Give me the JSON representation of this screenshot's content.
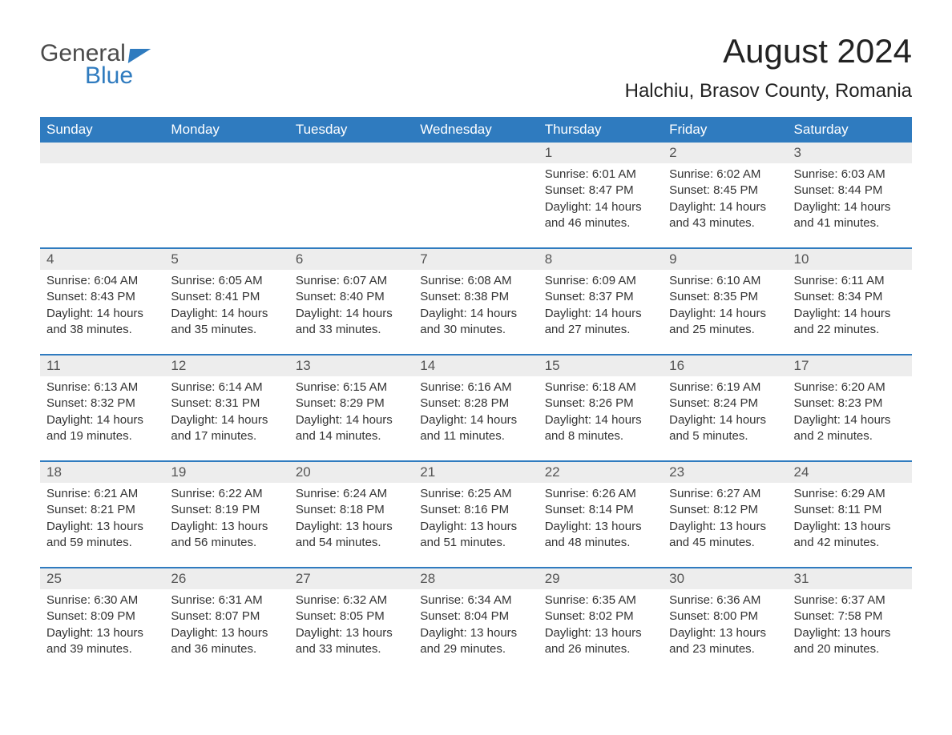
{
  "logo": {
    "text1": "General",
    "text2": "Blue"
  },
  "title": "August 2024",
  "location": "Halchiu, Brasov County, Romania",
  "colors": {
    "header_bg": "#2f7bbf",
    "header_text": "#ffffff",
    "dayrow_bg": "#ededed",
    "body_text": "#333333",
    "page_bg": "#ffffff"
  },
  "weekdays": [
    "Sunday",
    "Monday",
    "Tuesday",
    "Wednesday",
    "Thursday",
    "Friday",
    "Saturday"
  ],
  "weeks": [
    [
      null,
      null,
      null,
      null,
      {
        "n": "1",
        "sr": "6:01 AM",
        "ss": "8:47 PM",
        "dh": "14",
        "dm": "46"
      },
      {
        "n": "2",
        "sr": "6:02 AM",
        "ss": "8:45 PM",
        "dh": "14",
        "dm": "43"
      },
      {
        "n": "3",
        "sr": "6:03 AM",
        "ss": "8:44 PM",
        "dh": "14",
        "dm": "41"
      }
    ],
    [
      {
        "n": "4",
        "sr": "6:04 AM",
        "ss": "8:43 PM",
        "dh": "14",
        "dm": "38"
      },
      {
        "n": "5",
        "sr": "6:05 AM",
        "ss": "8:41 PM",
        "dh": "14",
        "dm": "35"
      },
      {
        "n": "6",
        "sr": "6:07 AM",
        "ss": "8:40 PM",
        "dh": "14",
        "dm": "33"
      },
      {
        "n": "7",
        "sr": "6:08 AM",
        "ss": "8:38 PM",
        "dh": "14",
        "dm": "30"
      },
      {
        "n": "8",
        "sr": "6:09 AM",
        "ss": "8:37 PM",
        "dh": "14",
        "dm": "27"
      },
      {
        "n": "9",
        "sr": "6:10 AM",
        "ss": "8:35 PM",
        "dh": "14",
        "dm": "25"
      },
      {
        "n": "10",
        "sr": "6:11 AM",
        "ss": "8:34 PM",
        "dh": "14",
        "dm": "22"
      }
    ],
    [
      {
        "n": "11",
        "sr": "6:13 AM",
        "ss": "8:32 PM",
        "dh": "14",
        "dm": "19"
      },
      {
        "n": "12",
        "sr": "6:14 AM",
        "ss": "8:31 PM",
        "dh": "14",
        "dm": "17"
      },
      {
        "n": "13",
        "sr": "6:15 AM",
        "ss": "8:29 PM",
        "dh": "14",
        "dm": "14"
      },
      {
        "n": "14",
        "sr": "6:16 AM",
        "ss": "8:28 PM",
        "dh": "14",
        "dm": "11"
      },
      {
        "n": "15",
        "sr": "6:18 AM",
        "ss": "8:26 PM",
        "dh": "14",
        "dm": "8"
      },
      {
        "n": "16",
        "sr": "6:19 AM",
        "ss": "8:24 PM",
        "dh": "14",
        "dm": "5"
      },
      {
        "n": "17",
        "sr": "6:20 AM",
        "ss": "8:23 PM",
        "dh": "14",
        "dm": "2"
      }
    ],
    [
      {
        "n": "18",
        "sr": "6:21 AM",
        "ss": "8:21 PM",
        "dh": "13",
        "dm": "59"
      },
      {
        "n": "19",
        "sr": "6:22 AM",
        "ss": "8:19 PM",
        "dh": "13",
        "dm": "56"
      },
      {
        "n": "20",
        "sr": "6:24 AM",
        "ss": "8:18 PM",
        "dh": "13",
        "dm": "54"
      },
      {
        "n": "21",
        "sr": "6:25 AM",
        "ss": "8:16 PM",
        "dh": "13",
        "dm": "51"
      },
      {
        "n": "22",
        "sr": "6:26 AM",
        "ss": "8:14 PM",
        "dh": "13",
        "dm": "48"
      },
      {
        "n": "23",
        "sr": "6:27 AM",
        "ss": "8:12 PM",
        "dh": "13",
        "dm": "45"
      },
      {
        "n": "24",
        "sr": "6:29 AM",
        "ss": "8:11 PM",
        "dh": "13",
        "dm": "42"
      }
    ],
    [
      {
        "n": "25",
        "sr": "6:30 AM",
        "ss": "8:09 PM",
        "dh": "13",
        "dm": "39"
      },
      {
        "n": "26",
        "sr": "6:31 AM",
        "ss": "8:07 PM",
        "dh": "13",
        "dm": "36"
      },
      {
        "n": "27",
        "sr": "6:32 AM",
        "ss": "8:05 PM",
        "dh": "13",
        "dm": "33"
      },
      {
        "n": "28",
        "sr": "6:34 AM",
        "ss": "8:04 PM",
        "dh": "13",
        "dm": "29"
      },
      {
        "n": "29",
        "sr": "6:35 AM",
        "ss": "8:02 PM",
        "dh": "13",
        "dm": "26"
      },
      {
        "n": "30",
        "sr": "6:36 AM",
        "ss": "8:00 PM",
        "dh": "13",
        "dm": "23"
      },
      {
        "n": "31",
        "sr": "6:37 AM",
        "ss": "7:58 PM",
        "dh": "13",
        "dm": "20"
      }
    ]
  ],
  "labels": {
    "sunrise": "Sunrise:",
    "sunset": "Sunset:",
    "daylight": "Daylight:",
    "hours": "hours",
    "and": "and",
    "minutes": "minutes."
  }
}
